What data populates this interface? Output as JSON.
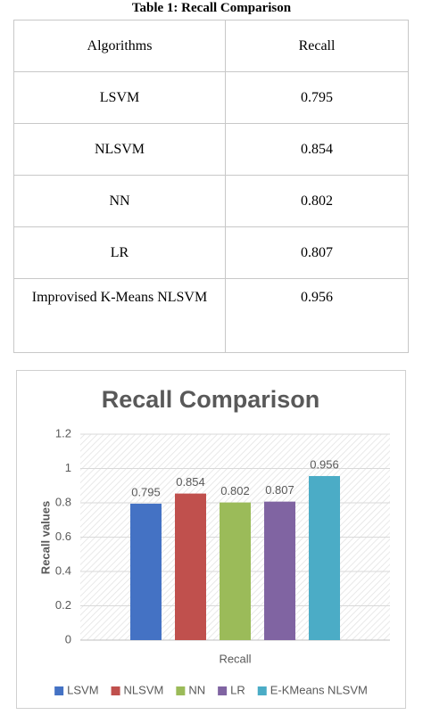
{
  "table": {
    "caption": "Table 1: Recall Comparison",
    "header": [
      "Algorithms",
      "Recall"
    ],
    "rows": [
      [
        "LSVM",
        "0.795"
      ],
      [
        "NLSVM",
        "0.854"
      ],
      [
        "NN",
        "0.802"
      ],
      [
        "LR",
        "0.807"
      ],
      [
        "Improvised K-Means NLSVM",
        "0.956"
      ]
    ]
  },
  "chart_data": {
    "type": "bar",
    "title": "Recall Comparison",
    "y_label": "Recall values",
    "categories": [
      "Recall"
    ],
    "series": [
      {
        "name": "LSVM",
        "color": "#4472c4",
        "values": [
          0.795
        ]
      },
      {
        "name": "NLSVM",
        "color": "#c0504d",
        "values": [
          0.854
        ]
      },
      {
        "name": "NN",
        "color": "#9bbb59",
        "values": [
          0.802
        ]
      },
      {
        "name": "LR",
        "color": "#8064a2",
        "values": [
          0.807
        ]
      },
      {
        "name": "E-KMeans NLSVM",
        "color": "#4bacc6",
        "values": [
          0.956
        ]
      }
    ],
    "ylim": [
      0,
      1.2
    ],
    "yticks": [
      0,
      0.2,
      0.4,
      0.6,
      0.8,
      1,
      1.2
    ],
    "grid": true,
    "legend": "bottom",
    "data_labels": true
  }
}
